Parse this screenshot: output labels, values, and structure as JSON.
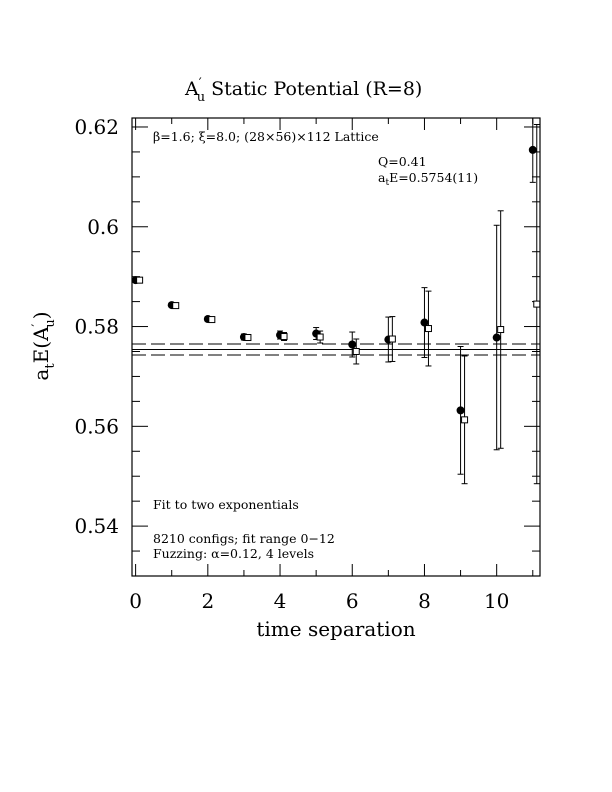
{
  "chart_data": {
    "type": "scatter",
    "title_main": "A",
    "title_sup": "′",
    "title_sub": "u",
    "title_rest": " Static Potential (R=8)",
    "xlabel": "time separation",
    "ylabel_main": "a",
    "ylabel_sub1": "t",
    "ylabel_mid": "E(A",
    "ylabel_sup": "′",
    "ylabel_sub2": "u",
    "ylabel_end": ")",
    "xlim": [
      -0.1,
      11.2
    ],
    "ylim": [
      0.53,
      0.6218
    ],
    "x_ticks": [
      0,
      2,
      4,
      6,
      8,
      10
    ],
    "x_tick_labels": [
      "0",
      "2",
      "4",
      "6",
      "8",
      "10"
    ],
    "y_ticks": [
      0.54,
      0.56,
      0.58,
      0.6,
      0.62
    ],
    "y_tick_labels": [
      "0.54",
      "0.56",
      "0.58",
      "0.6",
      "0.62"
    ],
    "annotations": {
      "lattice": "β=1.6; ξ=8.0; (28×56)×112 Lattice",
      "q": "Q=0.41",
      "energy_prefix": "a",
      "energy_sub": "t",
      "energy_rest": "E=0.5754(11)",
      "fit": "Fit to two exponentials",
      "configs": "8210 configs; fit range 0−12",
      "fuzzing": "Fuzzing: α=0.12, 4 levels"
    },
    "fit": {
      "value": 0.5754,
      "error": 0.0011,
      "x_range": [
        -0.1,
        11.2
      ]
    },
    "series": [
      {
        "marker": "filled-circle",
        "points": [
          {
            "x": 0,
            "y": 0.5893,
            "err": 0.0003
          },
          {
            "x": 1,
            "y": 0.5843,
            "err": 0.0004
          },
          {
            "x": 2,
            "y": 0.5815,
            "err": 0.0005
          },
          {
            "x": 3,
            "y": 0.5779,
            "err": 0.0006
          },
          {
            "x": 4,
            "y": 0.5783,
            "err": 0.0008
          },
          {
            "x": 5,
            "y": 0.5786,
            "err": 0.0012
          },
          {
            "x": 6,
            "y": 0.5764,
            "err": 0.0025
          },
          {
            "x": 7,
            "y": 0.5774,
            "err": 0.0045
          },
          {
            "x": 8,
            "y": 0.5808,
            "err": 0.007
          },
          {
            "x": 9,
            "y": 0.5632,
            "err": 0.0128
          },
          {
            "x": 10,
            "y": 0.5778,
            "err": 0.0225
          },
          {
            "x": 11,
            "y": 0.6154,
            "err": 0.0065
          }
        ]
      },
      {
        "marker": "open-square",
        "points": [
          {
            "x": 0,
            "y": 0.5893,
            "err": 0.0003
          },
          {
            "x": 1,
            "y": 0.5842,
            "err": 0.0004
          },
          {
            "x": 2,
            "y": 0.5814,
            "err": 0.0005
          },
          {
            "x": 3,
            "y": 0.5778,
            "err": 0.0006
          },
          {
            "x": 4,
            "y": 0.578,
            "err": 0.0008
          },
          {
            "x": 5,
            "y": 0.5779,
            "err": 0.0012
          },
          {
            "x": 6,
            "y": 0.575,
            "err": 0.0025
          },
          {
            "x": 7,
            "y": 0.5775,
            "err": 0.0045
          },
          {
            "x": 8,
            "y": 0.5796,
            "err": 0.0075
          },
          {
            "x": 9,
            "y": 0.5613,
            "err": 0.0128
          },
          {
            "x": 10,
            "y": 0.5794,
            "err": 0.0238
          },
          {
            "x": 11,
            "y": 0.5845,
            "err": 0.036
          }
        ]
      }
    ]
  }
}
